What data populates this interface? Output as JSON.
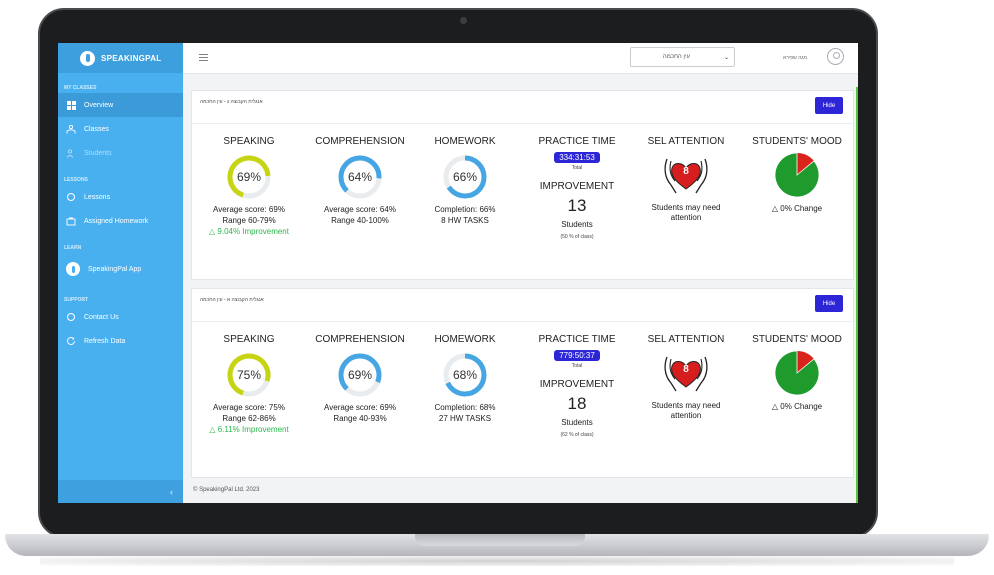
{
  "brand": {
    "name": "SPEAKINGPAL",
    "accent": "#49b0ef",
    "button_color": "#2d26d6",
    "improve_color": "#2db84d"
  },
  "sidebar": {
    "sections": {
      "my_classes": "MY CLASSES",
      "lessons": "LESSONS",
      "learn": "LEARN",
      "support": "SUPPORT"
    },
    "items": {
      "overview": "Overview",
      "classes": "Classes",
      "students": "Students",
      "lessons": "Lessons",
      "assigned_homework": "Assigned Homework",
      "app": "SpeakingPal App",
      "contact": "Contact Us",
      "refresh": "Refresh Data"
    },
    "collapse_icon": "chevron-left-icon"
  },
  "topbar": {
    "selected_class": "עין החכמה",
    "user_name": "מגה שפירא"
  },
  "hide_label": "Hide",
  "labels": {
    "speaking": "SPEAKING",
    "comprehension": "COMPREHENSION",
    "homework": "HOMEWORK",
    "practice_time": "PRACTICE TIME",
    "total": "Total",
    "improvement": "IMPROVEMENT",
    "students": "Students",
    "sel_attention": "SEL ATTENTION",
    "sel_line1": "Students may need",
    "sel_line2": "attention",
    "mood": "STUDENTS' MOOD"
  },
  "classes": [
    {
      "title": "אנגלית הקבוצה ג - עין החכמה",
      "speaking": {
        "label": "69%",
        "value": 0.69,
        "avg": "Average score: 69%",
        "range": "Range 60-79%",
        "improvement": "9.04% Improvement"
      },
      "comprehension": {
        "label": "64%",
        "value": 0.64,
        "avg": "Average score: 64%",
        "range": "Range 40-100%"
      },
      "homework": {
        "label": "66%",
        "value": 0.66,
        "completion": "Completion: 66%",
        "tasks": "8 HW TASKS"
      },
      "practice_time": "334:31:53",
      "improvement_count": "13",
      "improvement_pct": "(50 % of class)",
      "sel_count": "8",
      "mood_change": "0% Change",
      "mood_positive": 0.86
    },
    {
      "title": "אנגלית הקבוצה א - עין החכמה",
      "speaking": {
        "label": "75%",
        "value": 0.75,
        "avg": "Average score: 75%",
        "range": "Range 62-86%",
        "improvement": "6.11% Improvement"
      },
      "comprehension": {
        "label": "69%",
        "value": 0.69,
        "avg": "Average score: 69%",
        "range": "Range 40-93%"
      },
      "homework": {
        "label": "68%",
        "value": 0.68,
        "completion": "Completion: 68%",
        "tasks": "27 HW TASKS"
      },
      "practice_time": "779:50:37",
      "improvement_count": "18",
      "improvement_pct": "(62 % of class)",
      "sel_count": "8",
      "mood_change": "0% Change",
      "mood_positive": 0.86
    }
  ],
  "footer": {
    "copyright": "© SpeakingPal Ltd. 2023"
  }
}
